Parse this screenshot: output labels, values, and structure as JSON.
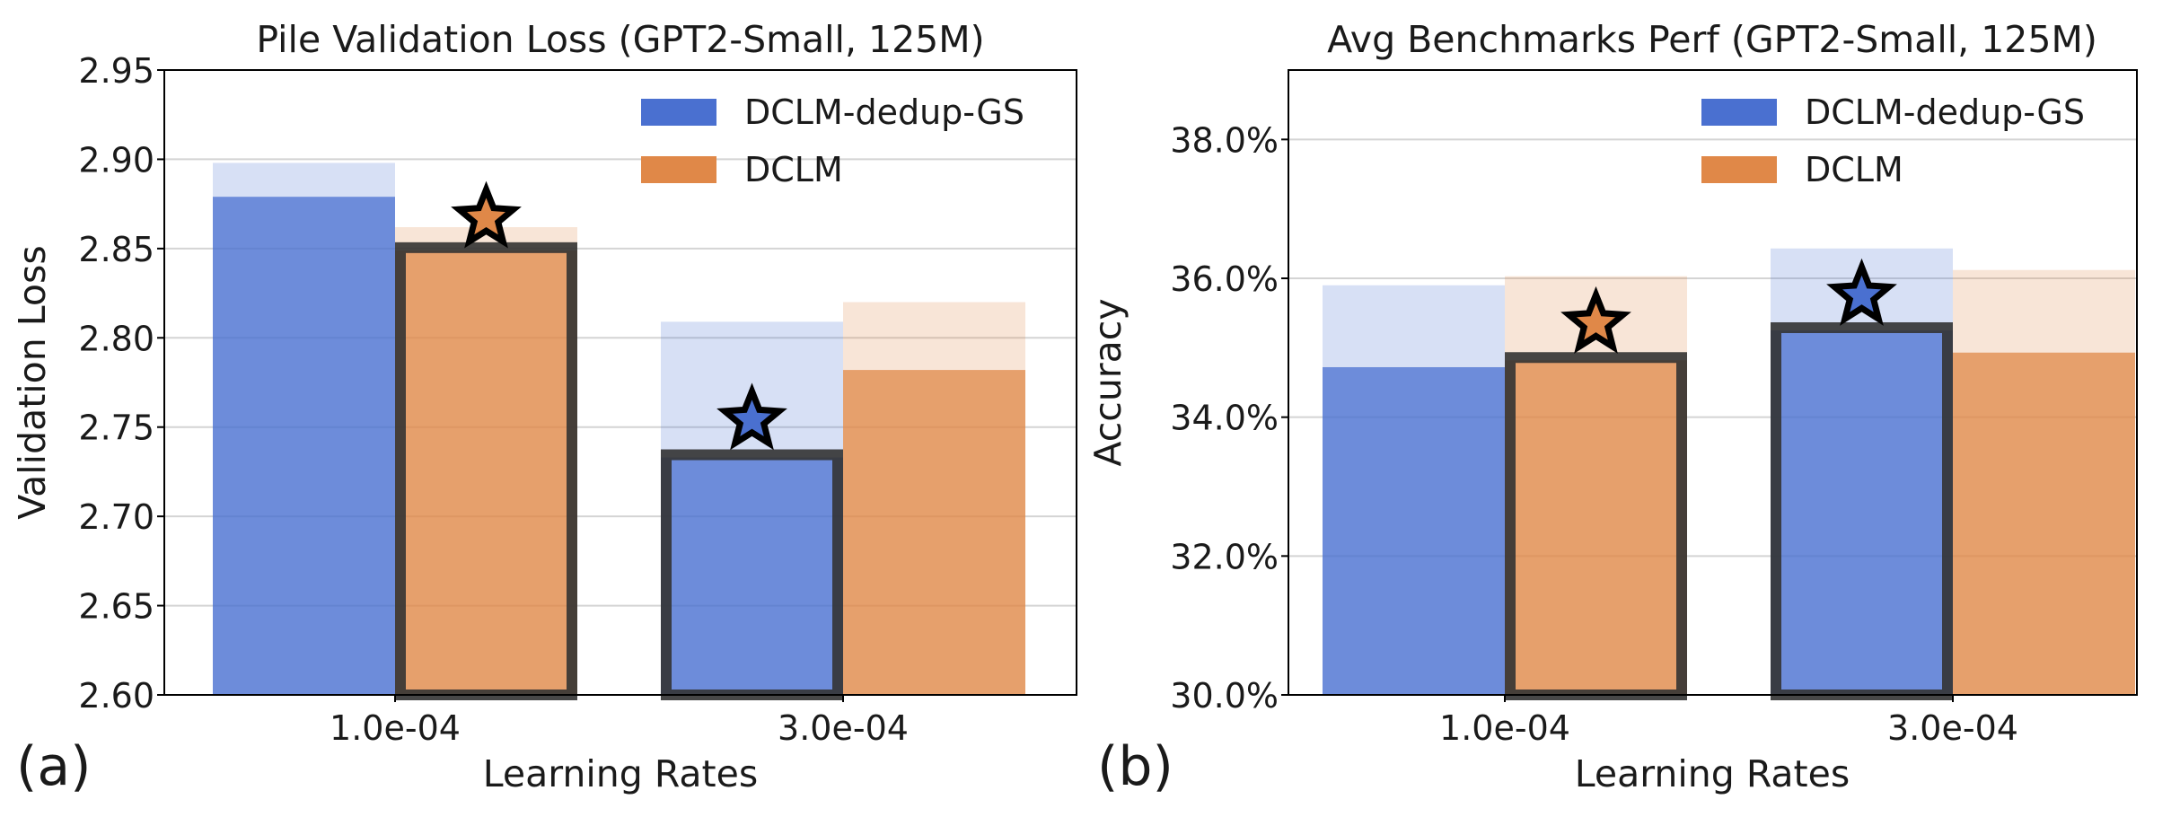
{
  "chart_data": [
    {
      "panel_label": "(a)",
      "type": "bar",
      "title": "Pile Validation Loss (GPT2-Small, 125M)",
      "xlabel": "Learning Rates",
      "ylabel": "Validation Loss",
      "categories": [
        "1.0e-04",
        "3.0e-04"
      ],
      "ylim": [
        2.6,
        2.95
      ],
      "yticks": [
        2.6,
        2.65,
        2.7,
        2.75,
        2.8,
        2.85,
        2.9,
        2.95
      ],
      "ytick_labels": [
        "2.60",
        "2.65",
        "2.70",
        "2.75",
        "2.80",
        "2.85",
        "2.90",
        "2.95"
      ],
      "grid": true,
      "legend_position": "top-right",
      "series": [
        {
          "name": "DCLM-dedup-GS",
          "color": "#4a70d0",
          "values": [
            2.879,
            2.733
          ],
          "faint_values": [
            2.898,
            2.809
          ]
        },
        {
          "name": "DCLM",
          "color": "#e08848",
          "values": [
            2.849,
            2.782
          ],
          "faint_values": [
            2.862,
            2.82
          ]
        }
      ],
      "highlighted": [
        {
          "series": 1,
          "category": 0,
          "star_value": 2.867
        },
        {
          "series": 0,
          "category": 1,
          "star_value": 2.754
        }
      ]
    },
    {
      "panel_label": "(b)",
      "type": "bar",
      "title": "Avg Benchmarks Perf (GPT2-Small, 125M)",
      "xlabel": "Learning Rates",
      "ylabel": "Accuracy",
      "categories": [
        "1.0e-04",
        "3.0e-04"
      ],
      "ylim": [
        30.0,
        39.0
      ],
      "yticks": [
        30,
        32,
        34,
        36,
        38
      ],
      "ytick_labels": [
        "30.0%",
        "32.0%",
        "34.0%",
        "36.0%",
        "38.0%"
      ],
      "grid": true,
      "legend_position": "top-right",
      "series": [
        {
          "name": "DCLM-dedup-GS",
          "color": "#4a70d0",
          "values": [
            34.72,
            35.25
          ],
          "faint_values": [
            35.9,
            36.43
          ]
        },
        {
          "name": "DCLM",
          "color": "#e08848",
          "values": [
            34.82,
            34.93
          ],
          "faint_values": [
            36.03,
            36.12
          ]
        }
      ],
      "highlighted": [
        {
          "series": 1,
          "category": 0,
          "star_value": 35.35
        },
        {
          "series": 0,
          "category": 1,
          "star_value": 35.75
        }
      ]
    }
  ]
}
